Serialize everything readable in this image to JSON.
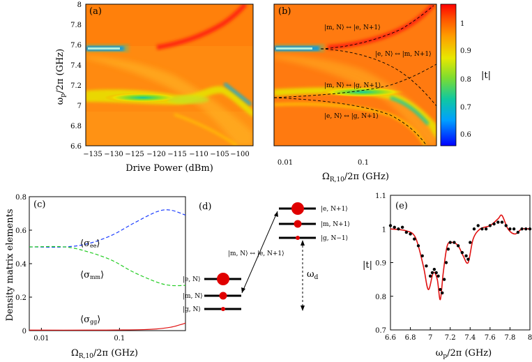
{
  "panels": {
    "a": {
      "label": "(a)",
      "xlabel": "Drive Power (dBm)",
      "xticks": [
        "−135",
        "−130",
        "−125",
        "−120",
        "−115",
        "−110",
        "−105",
        "−100"
      ],
      "ylabel": "ω",
      "ylabel_sub": "p",
      "ylabel_rest": "/2π (GHz)",
      "yticks": [
        "8",
        "7.8",
        "7.6",
        "7.4",
        "7.2",
        "7",
        "6.8",
        "6.6"
      ]
    },
    "b": {
      "label": "(b)",
      "xlabel_main": "Ω",
      "xlabel_sub": "R,10",
      "xlabel_rest": "/2π (GHz)",
      "xticks": [
        "0.01",
        "0.1"
      ],
      "annotations": [
        "|m, N⟩ ↔ |e, N+1⟩",
        "|e, N⟩ ↔ |m, N+1⟩",
        "|m, N⟩ ↔ |g, N+1⟩",
        "|e, N⟩ ↔ |g, N+1⟩"
      ]
    },
    "colorbar": {
      "label": "|t|",
      "ticks": [
        "1",
        "0.9",
        "0.8",
        "0.7",
        "0.6"
      ]
    },
    "c": {
      "label": "(c)",
      "ylabel": "Density matrix elements",
      "xlabel_main": "Ω",
      "xlabel_sub": "R,10",
      "xlabel_rest": "/2π (GHz)",
      "xticks": [
        "0.01",
        "0.1"
      ],
      "yticks": [
        "0",
        "0.2",
        "0.4",
        "0.6",
        "0.8"
      ],
      "curve_labels": {
        "ee": "⟨σ",
        "ee_sub": "ee",
        "mm": "⟨σ",
        "mm_sub": "mm",
        "gg": "⟨σ",
        "gg_sub": "gg",
        "close": "⟩"
      }
    },
    "d": {
      "label": "(d)",
      "left_levels": [
        "|e, N⟩",
        "|m, N⟩",
        "|g, N⟩"
      ],
      "right_levels": [
        "|e, N+1⟩",
        "|m, N+1⟩",
        "|g, N−1⟩"
      ],
      "transition": "|m, N⟩ ↔ |e, N+1⟩",
      "drive": "ω",
      "drive_sub": "d"
    },
    "e": {
      "label": "(e)",
      "ylabel": "|t|",
      "xlabel_main": "ω",
      "xlabel_sub": "p",
      "xlabel_rest": "/2π (GHz)",
      "xticks": [
        "6.6",
        "6.8",
        "7",
        "7.2",
        "7.4",
        "7.6",
        "7.8",
        "8"
      ],
      "yticks": [
        "1.1",
        "1",
        "0.9",
        "0.8",
        "0.7"
      ]
    }
  },
  "colors": {
    "ee": "#1a3cff",
    "mm": "#22cc22",
    "gg": "#e01010",
    "theory": "#e01010",
    "data": "#000000"
  },
  "chart_data": [
    {
      "type": "heatmap",
      "title": "(a)",
      "xlabel": "Drive Power (dBm)",
      "ylabel": "ωp/2π (GHz)",
      "xlim": [
        -137,
        -97
      ],
      "ylim": [
        6.6,
        8.0
      ],
      "zlabel": "|t|",
      "zlim": [
        0.55,
        1.05
      ],
      "features": [
        {
          "name": "bare cavity resonance",
          "x": [
            -137,
            -129
          ],
          "y": 7.57,
          "t_min": 0.55
        },
        {
          "name": "main branch",
          "points": [
            [
              -137,
              7.12
            ],
            [
              -122,
              7.1
            ],
            [
              -110,
              7.05
            ],
            [
              -104,
              7.08
            ],
            [
              -100,
              7.0
            ],
            [
              -97,
              6.95
            ]
          ]
        },
        {
          "name": "upper branch",
          "points": [
            [
              -125,
              7.58
            ],
            [
              -118,
              7.64
            ],
            [
              -110,
              7.78
            ],
            [
              -104,
              7.95
            ],
            [
              -100,
              8.0
            ]
          ]
        }
      ]
    },
    {
      "type": "heatmap",
      "title": "(b)",
      "xlabel": "ΩR,10/2π (GHz)",
      "xscale": "log",
      "xlim": [
        0.007,
        0.7
      ],
      "ylim": [
        6.6,
        8.0
      ],
      "zlim": [
        0.55,
        1.05
      ]
    },
    {
      "type": "line",
      "title": "(c)",
      "xlabel": "ΩR,10/2π (GHz)",
      "ylabel": "Density matrix elements",
      "xscale": "log",
      "xlim": [
        0.007,
        0.7
      ],
      "ylim": [
        0,
        0.8
      ],
      "series": [
        {
          "name": "⟨σee⟩",
          "style": "dashed",
          "x": [
            0.007,
            0.02,
            0.04,
            0.08,
            0.15,
            0.3,
            0.45,
            0.7
          ],
          "values": [
            0.5,
            0.5,
            0.52,
            0.57,
            0.64,
            0.71,
            0.72,
            0.69
          ]
        },
        {
          "name": "⟨σmm⟩",
          "style": "dashed",
          "x": [
            0.007,
            0.02,
            0.04,
            0.08,
            0.15,
            0.3,
            0.45,
            0.7
          ],
          "values": [
            0.5,
            0.5,
            0.47,
            0.42,
            0.35,
            0.29,
            0.27,
            0.27
          ]
        },
        {
          "name": "⟨σgg⟩",
          "style": "solid",
          "x": [
            0.007,
            0.05,
            0.1,
            0.2,
            0.3,
            0.45,
            0.6,
            0.7
          ],
          "values": [
            0.003,
            0.003,
            0.004,
            0.006,
            0.01,
            0.02,
            0.035,
            0.045
          ]
        }
      ]
    },
    {
      "type": "line",
      "title": "(e)",
      "xlabel": "ωp/2π (GHz)",
      "ylabel": "|t|",
      "xlim": [
        6.6,
        8.0
      ],
      "ylim": [
        0.7,
        1.1
      ],
      "series": [
        {
          "name": "theory",
          "style": "solid",
          "x": [
            6.6,
            6.75,
            6.85,
            6.93,
            6.98,
            7.03,
            7.07,
            7.1,
            7.13,
            7.17,
            7.22,
            7.28,
            7.33,
            7.38,
            7.43,
            7.5,
            7.6,
            7.68,
            7.72,
            7.78,
            7.85,
            7.92,
            8.0
          ],
          "values": [
            1.0,
            0.995,
            0.975,
            0.89,
            0.82,
            0.87,
            0.85,
            0.79,
            0.87,
            0.95,
            0.96,
            0.95,
            0.92,
            0.9,
            0.97,
            1.0,
            1.01,
            1.03,
            1.04,
            1.0,
            0.985,
            1.0,
            1.0
          ]
        },
        {
          "name": "data",
          "style": "markers",
          "x": [
            6.6,
            6.64,
            6.68,
            6.72,
            6.76,
            6.8,
            6.84,
            6.88,
            6.92,
            6.96,
            7.0,
            7.02,
            7.04,
            7.06,
            7.08,
            7.1,
            7.12,
            7.14,
            7.16,
            7.18,
            7.2,
            7.24,
            7.28,
            7.32,
            7.36,
            7.38,
            7.4,
            7.44,
            7.48,
            7.52,
            7.56,
            7.6,
            7.64,
            7.68,
            7.72,
            7.76,
            7.8,
            7.84,
            7.88,
            7.92,
            7.96,
            8.0
          ],
          "values": [
            1.01,
            1.005,
            1.0,
            1.005,
            0.99,
            0.985,
            0.97,
            0.95,
            0.92,
            0.89,
            0.86,
            0.87,
            0.88,
            0.87,
            0.86,
            0.82,
            0.81,
            0.85,
            0.9,
            0.94,
            0.96,
            0.96,
            0.95,
            0.93,
            0.92,
            0.91,
            0.96,
            1.0,
            1.01,
            1.0,
            1.0,
            1.01,
            1.015,
            1.02,
            1.02,
            1.01,
            1.0,
            1.0,
            0.99,
            1.0,
            1.0,
            1.0
          ]
        }
      ]
    }
  ]
}
